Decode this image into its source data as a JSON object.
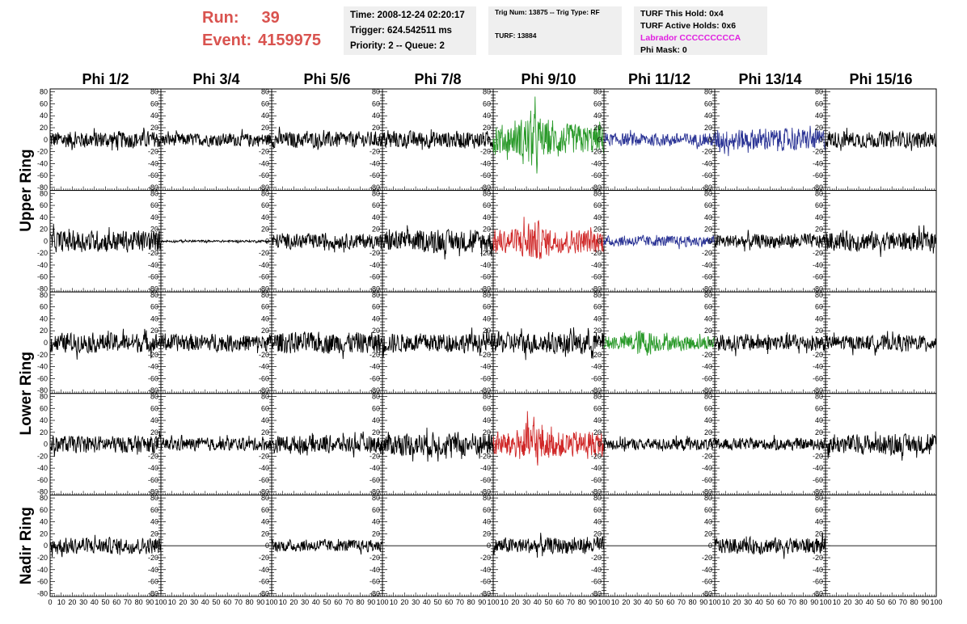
{
  "header": {
    "run_label": "Run:",
    "run_value": "39",
    "event_label": "Event:",
    "event_value": "4159975",
    "time": "Time: 2008-12-24 02:20:17",
    "trigger": "Trigger: 624.542511 ms",
    "priority": "Priority: 2 -- Queue: 2",
    "trig_num": "Trig Num: 13875 -- Trig Type: RF",
    "turf": "TURF: 13884",
    "turf_this_hold": "TURF This Hold: 0x4",
    "turf_active_holds": "TURF Active Holds: 0x6",
    "labrador": "Labrador CCCCCCCCCA",
    "phi_mask": "Phi Mask: 0"
  },
  "colors": {
    "run_text": "#d9534f",
    "info_bg": "#efefef",
    "labrador": "#e020e0",
    "trace_default": "#000000",
    "trace_green": "#2a9a2a",
    "trace_blue": "#2c3596",
    "trace_red": "#d02828"
  },
  "chart_data": {
    "type": "line",
    "title": "",
    "column_labels": [
      "Phi 1/2",
      "Phi 3/4",
      "Phi 5/6",
      "Phi 7/8",
      "Phi 9/10",
      "Phi 11/12",
      "Phi 13/14",
      "Phi 15/16"
    ],
    "ring_labels": [
      {
        "label": "Upper Ring",
        "rows": [
          0,
          1
        ]
      },
      {
        "label": "Lower Ring",
        "rows": [
          2,
          3
        ]
      },
      {
        "label": "Nadir Ring",
        "rows": [
          4
        ]
      }
    ],
    "xlim": [
      0,
      100
    ],
    "ylim": [
      -85,
      85
    ],
    "y_ticks": [
      -80,
      -60,
      -40,
      -20,
      0,
      20,
      40,
      60,
      80
    ],
    "x_tick_labels_first": [
      "0",
      "10",
      "20",
      "30",
      "40",
      "50",
      "60",
      "70",
      "80",
      "90",
      "100"
    ],
    "x_tick_labels_other": [
      "10",
      "20",
      "30",
      "40",
      "50",
      "60",
      "70",
      "80",
      "90",
      "100"
    ],
    "panels": [
      [
        {
          "color": "black",
          "amp": 16
        },
        {
          "color": "black",
          "amp": 12
        },
        {
          "color": "black",
          "amp": 15
        },
        {
          "color": "black",
          "amp": 16
        },
        {
          "color": "green",
          "amp": 28
        },
        {
          "color": "blue",
          "amp": 12
        },
        {
          "color": "blue",
          "amp": 20
        },
        {
          "color": "black",
          "amp": 15
        }
      ],
      [
        {
          "color": "black",
          "amp": 20
        },
        {
          "color": "black",
          "amp": 2
        },
        {
          "color": "black",
          "amp": 14
        },
        {
          "color": "black",
          "amp": 20
        },
        {
          "color": "red",
          "amp": 22
        },
        {
          "color": "blue",
          "amp": 10
        },
        {
          "color": "black",
          "amp": 13
        },
        {
          "color": "black",
          "amp": 18
        }
      ],
      [
        {
          "color": "black",
          "amp": 18
        },
        {
          "color": "black",
          "amp": 16
        },
        {
          "color": "black",
          "amp": 20
        },
        {
          "color": "black",
          "amp": 18
        },
        {
          "color": "black",
          "amp": 20
        },
        {
          "color": "green",
          "amp": 14
        },
        {
          "color": "black",
          "amp": 16
        },
        {
          "color": "black",
          "amp": 14
        }
      ],
      [
        {
          "color": "black",
          "amp": 16
        },
        {
          "color": "black",
          "amp": 12
        },
        {
          "color": "black",
          "amp": 16
        },
        {
          "color": "black",
          "amp": 22
        },
        {
          "color": "red",
          "amp": 24
        },
        {
          "color": "black",
          "amp": 11
        },
        {
          "color": "black",
          "amp": 11
        },
        {
          "color": "black",
          "amp": 18
        }
      ],
      [
        {
          "color": "black",
          "amp": 15
        },
        {
          "color": "black",
          "amp": 0
        },
        {
          "color": "black",
          "amp": 11
        },
        {
          "color": "black",
          "amp": 0
        },
        {
          "color": "black",
          "amp": 15
        },
        {
          "color": "black",
          "amp": 0
        },
        {
          "color": "black",
          "amp": 15
        },
        {
          "color": "black",
          "amp": 0
        }
      ]
    ]
  }
}
